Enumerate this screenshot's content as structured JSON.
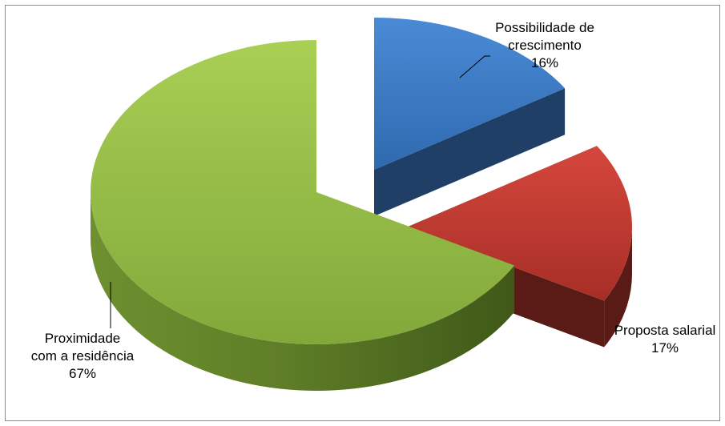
{
  "chart_data": {
    "type": "pie",
    "title": "",
    "slices": [
      {
        "label_lines": [
          "Possibilidade de",
          "crescimento"
        ],
        "percent_label": "16%",
        "value": 16,
        "color": "#3f7fc9"
      },
      {
        "label_lines": [
          "Proposta salarial"
        ],
        "percent_label": "17%",
        "value": 17,
        "color": "#c0392f"
      },
      {
        "label_lines": [
          "Proximidade",
          "com a residência"
        ],
        "percent_label": "67%",
        "value": 67,
        "color": "#8db63f"
      }
    ],
    "exploded": true,
    "style": "3d",
    "legend": "none"
  }
}
